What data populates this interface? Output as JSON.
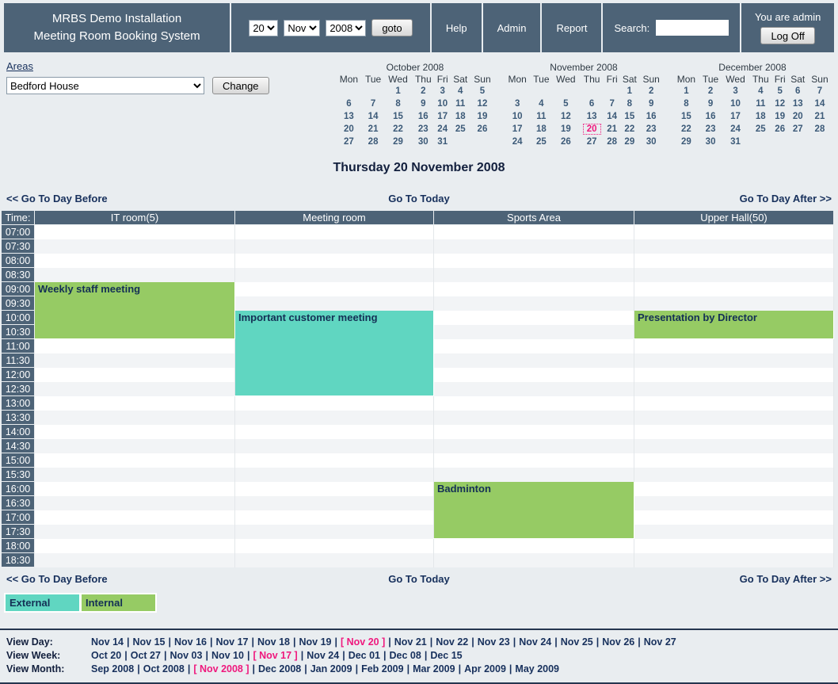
{
  "colors": {
    "header_slate": "#4d6377",
    "page_bg": "#e9edf0",
    "stripe_gray": "#f2f4f6",
    "internal_green": "#96cb64",
    "external_teal": "#60d6c1",
    "current_pink": "#ef187d",
    "link_navy": "#17305c"
  },
  "header": {
    "title": {
      "line1": "MRBS Demo Installation",
      "line2": "Meeting Room Booking System"
    },
    "date": {
      "day": "20",
      "month": "Nov",
      "year": "2008"
    },
    "goto_label": "goto",
    "links": [
      "Help",
      "Admin",
      "Report"
    ],
    "search_label": "Search:",
    "search_value": "",
    "user_status": "You are admin",
    "logoff_label": "Log Off"
  },
  "areas": {
    "label": "Areas",
    "selected": "Bedford House",
    "change_label": "Change"
  },
  "calendars": [
    {
      "title": "October 2008",
      "weekdays": [
        "Mon",
        "Tue",
        "Wed",
        "Thu",
        "Fri",
        "Sat",
        "Sun"
      ],
      "weeks": [
        [
          "",
          "",
          "1",
          "2",
          "3",
          "4",
          "5"
        ],
        [
          "6",
          "7",
          "8",
          "9",
          "10",
          "11",
          "12"
        ],
        [
          "13",
          "14",
          "15",
          "16",
          "17",
          "18",
          "19"
        ],
        [
          "20",
          "21",
          "22",
          "23",
          "24",
          "25",
          "26"
        ],
        [
          "27",
          "28",
          "29",
          "30",
          "31",
          "",
          ""
        ]
      ],
      "current_day": ""
    },
    {
      "title": "November 2008",
      "weekdays": [
        "Mon",
        "Tue",
        "Wed",
        "Thu",
        "Fri",
        "Sat",
        "Sun"
      ],
      "weeks": [
        [
          "",
          "",
          "",
          "",
          "",
          "1",
          "2"
        ],
        [
          "3",
          "4",
          "5",
          "6",
          "7",
          "8",
          "9"
        ],
        [
          "10",
          "11",
          "12",
          "13",
          "14",
          "15",
          "16"
        ],
        [
          "17",
          "18",
          "19",
          "20",
          "21",
          "22",
          "23"
        ],
        [
          "24",
          "25",
          "26",
          "27",
          "28",
          "29",
          "30"
        ]
      ],
      "current_day": "20"
    },
    {
      "title": "December 2008",
      "weekdays": [
        "Mon",
        "Tue",
        "Wed",
        "Thu",
        "Fri",
        "Sat",
        "Sun"
      ],
      "weeks": [
        [
          "1",
          "2",
          "3",
          "4",
          "5",
          "6",
          "7"
        ],
        [
          "8",
          "9",
          "10",
          "11",
          "12",
          "13",
          "14"
        ],
        [
          "15",
          "16",
          "17",
          "18",
          "19",
          "20",
          "21"
        ],
        [
          "22",
          "23",
          "24",
          "25",
          "26",
          "27",
          "28"
        ],
        [
          "29",
          "30",
          "31",
          "",
          "",
          "",
          ""
        ]
      ],
      "current_day": ""
    }
  ],
  "day_view": {
    "heading": "Thursday 20 November 2008",
    "nav": {
      "prev": "<< Go To Day Before",
      "today": "Go To Today",
      "next": "Go To Day After >>"
    },
    "table": {
      "time_header": "Time:",
      "rooms": [
        "IT room(5)",
        "Meeting room",
        "Sports Area",
        "Upper Hall(50)"
      ],
      "times": [
        "07:00",
        "07:30",
        "08:00",
        "08:30",
        "09:00",
        "09:30",
        "10:00",
        "10:30",
        "11:00",
        "11:30",
        "12:00",
        "12:30",
        "13:00",
        "13:30",
        "14:00",
        "14:30",
        "15:00",
        "15:30",
        "16:00",
        "16:30",
        "17:00",
        "17:30",
        "18:00",
        "18:30"
      ],
      "bookings": [
        {
          "name": "Weekly staff meeting",
          "room_index": 0,
          "start": "09:00",
          "end": "10:30",
          "row_span": 4,
          "category": "internal"
        },
        {
          "name": "Important customer meeting",
          "room_index": 1,
          "start": "10:00",
          "end": "12:30",
          "row_span": 6,
          "category": "external"
        },
        {
          "name": "Badminton",
          "room_index": 2,
          "start": "16:00",
          "end": "17:30",
          "row_span": 4,
          "category": "internal"
        },
        {
          "name": "Presentation by Director",
          "room_index": 3,
          "start": "10:00",
          "end": "10:30",
          "row_span": 2,
          "category": "internal"
        }
      ]
    },
    "legend": [
      {
        "label": "External",
        "category": "external"
      },
      {
        "label": "Internal",
        "category": "internal"
      }
    ]
  },
  "footer_nav": {
    "rows": [
      {
        "label": "View Day:",
        "items": [
          "Nov 14",
          "Nov 15",
          "Nov 16",
          "Nov 17",
          "Nov 18",
          "Nov 19",
          "[ Nov 20 ]",
          "Nov 21",
          "Nov 22",
          "Nov 23",
          "Nov 24",
          "Nov 25",
          "Nov 26",
          "Nov 27"
        ],
        "current_index": 6
      },
      {
        "label": "View Week:",
        "items": [
          "Oct 20",
          "Oct 27",
          "Nov 03",
          "Nov 10",
          "[ Nov 17 ]",
          "Nov 24",
          "Dec 01",
          "Dec 08",
          "Dec 15"
        ],
        "current_index": 4
      },
      {
        "label": "View Month:",
        "items": [
          "Sep 2008",
          "Oct 2008",
          "[ Nov 2008 ]",
          "Dec 2008",
          "Jan 2009",
          "Feb 2009",
          "Mar 2009",
          "Apr 2009",
          "May 2009"
        ],
        "current_index": 2
      }
    ]
  }
}
